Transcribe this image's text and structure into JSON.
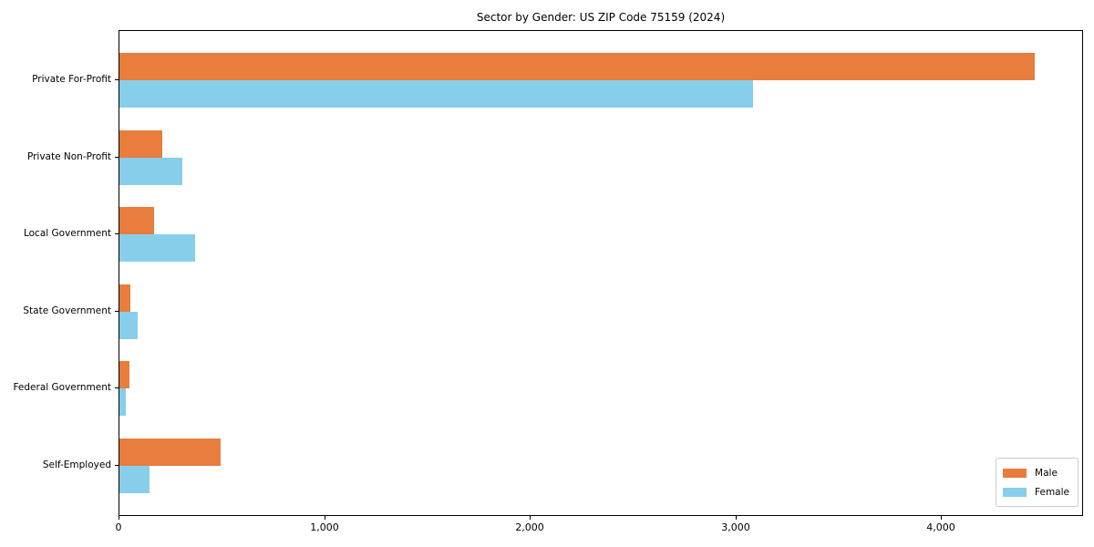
{
  "chart_data": {
    "type": "bar",
    "orientation": "horizontal",
    "title": "Sector by Gender: US ZIP Code 75159 (2024)",
    "categories": [
      "Private For-Profit",
      "Private Non-Profit",
      "Local Government",
      "State Government",
      "Federal Government",
      "Self-Employed"
    ],
    "series": [
      {
        "name": "Male",
        "color": "#e87d3d",
        "values": [
          4450,
          210,
          170,
          55,
          50,
          490
        ]
      },
      {
        "name": "Female",
        "color": "#87ceeb",
        "values": [
          3080,
          305,
          370,
          90,
          33,
          145
        ]
      }
    ],
    "xlabel": "",
    "ylabel": "",
    "xlim": [
      0,
      4690
    ],
    "x_ticks": [
      0,
      1000,
      2000,
      3000,
      4000
    ],
    "x_tick_labels": [
      "0",
      "1,000",
      "2,000",
      "3,000",
      "4,000"
    ],
    "grid": false,
    "legend_position": "lower right",
    "legend_labels": [
      "Male",
      "Female"
    ]
  }
}
